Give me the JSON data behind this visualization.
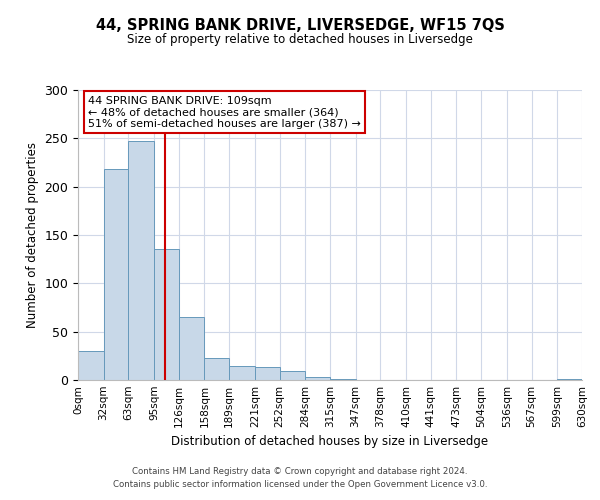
{
  "title": "44, SPRING BANK DRIVE, LIVERSEDGE, WF15 7QS",
  "subtitle": "Size of property relative to detached houses in Liversedge",
  "xlabel": "Distribution of detached houses by size in Liversedge",
  "ylabel": "Number of detached properties",
  "bin_edges": [
    0,
    32,
    63,
    95,
    126,
    158,
    189,
    221,
    252,
    284,
    315,
    347,
    378,
    410,
    441,
    473,
    504,
    536,
    567,
    599,
    630
  ],
  "bar_heights": [
    30,
    218,
    247,
    136,
    65,
    23,
    15,
    13,
    9,
    3,
    1,
    0,
    0,
    0,
    0,
    0,
    0,
    0,
    0,
    1
  ],
  "bar_color": "#c8d8e8",
  "bar_edge_color": "#6699bb",
  "property_line_x": 109,
  "property_line_color": "#cc0000",
  "ylim": [
    0,
    300
  ],
  "yticks": [
    0,
    50,
    100,
    150,
    200,
    250,
    300
  ],
  "x_tick_labels": [
    "0sqm",
    "32sqm",
    "63sqm",
    "95sqm",
    "126sqm",
    "158sqm",
    "189sqm",
    "221sqm",
    "252sqm",
    "284sqm",
    "315sqm",
    "347sqm",
    "378sqm",
    "410sqm",
    "441sqm",
    "473sqm",
    "504sqm",
    "536sqm",
    "567sqm",
    "599sqm",
    "630sqm"
  ],
  "annotation_title": "44 SPRING BANK DRIVE: 109sqm",
  "annotation_line1": "← 48% of detached houses are smaller (364)",
  "annotation_line2": "51% of semi-detached houses are larger (387) →",
  "annotation_box_color": "#ffffff",
  "annotation_box_edge": "#cc0000",
  "footer_line1": "Contains HM Land Registry data © Crown copyright and database right 2024.",
  "footer_line2": "Contains public sector information licensed under the Open Government Licence v3.0.",
  "background_color": "#ffffff",
  "grid_color": "#d0d8e8"
}
